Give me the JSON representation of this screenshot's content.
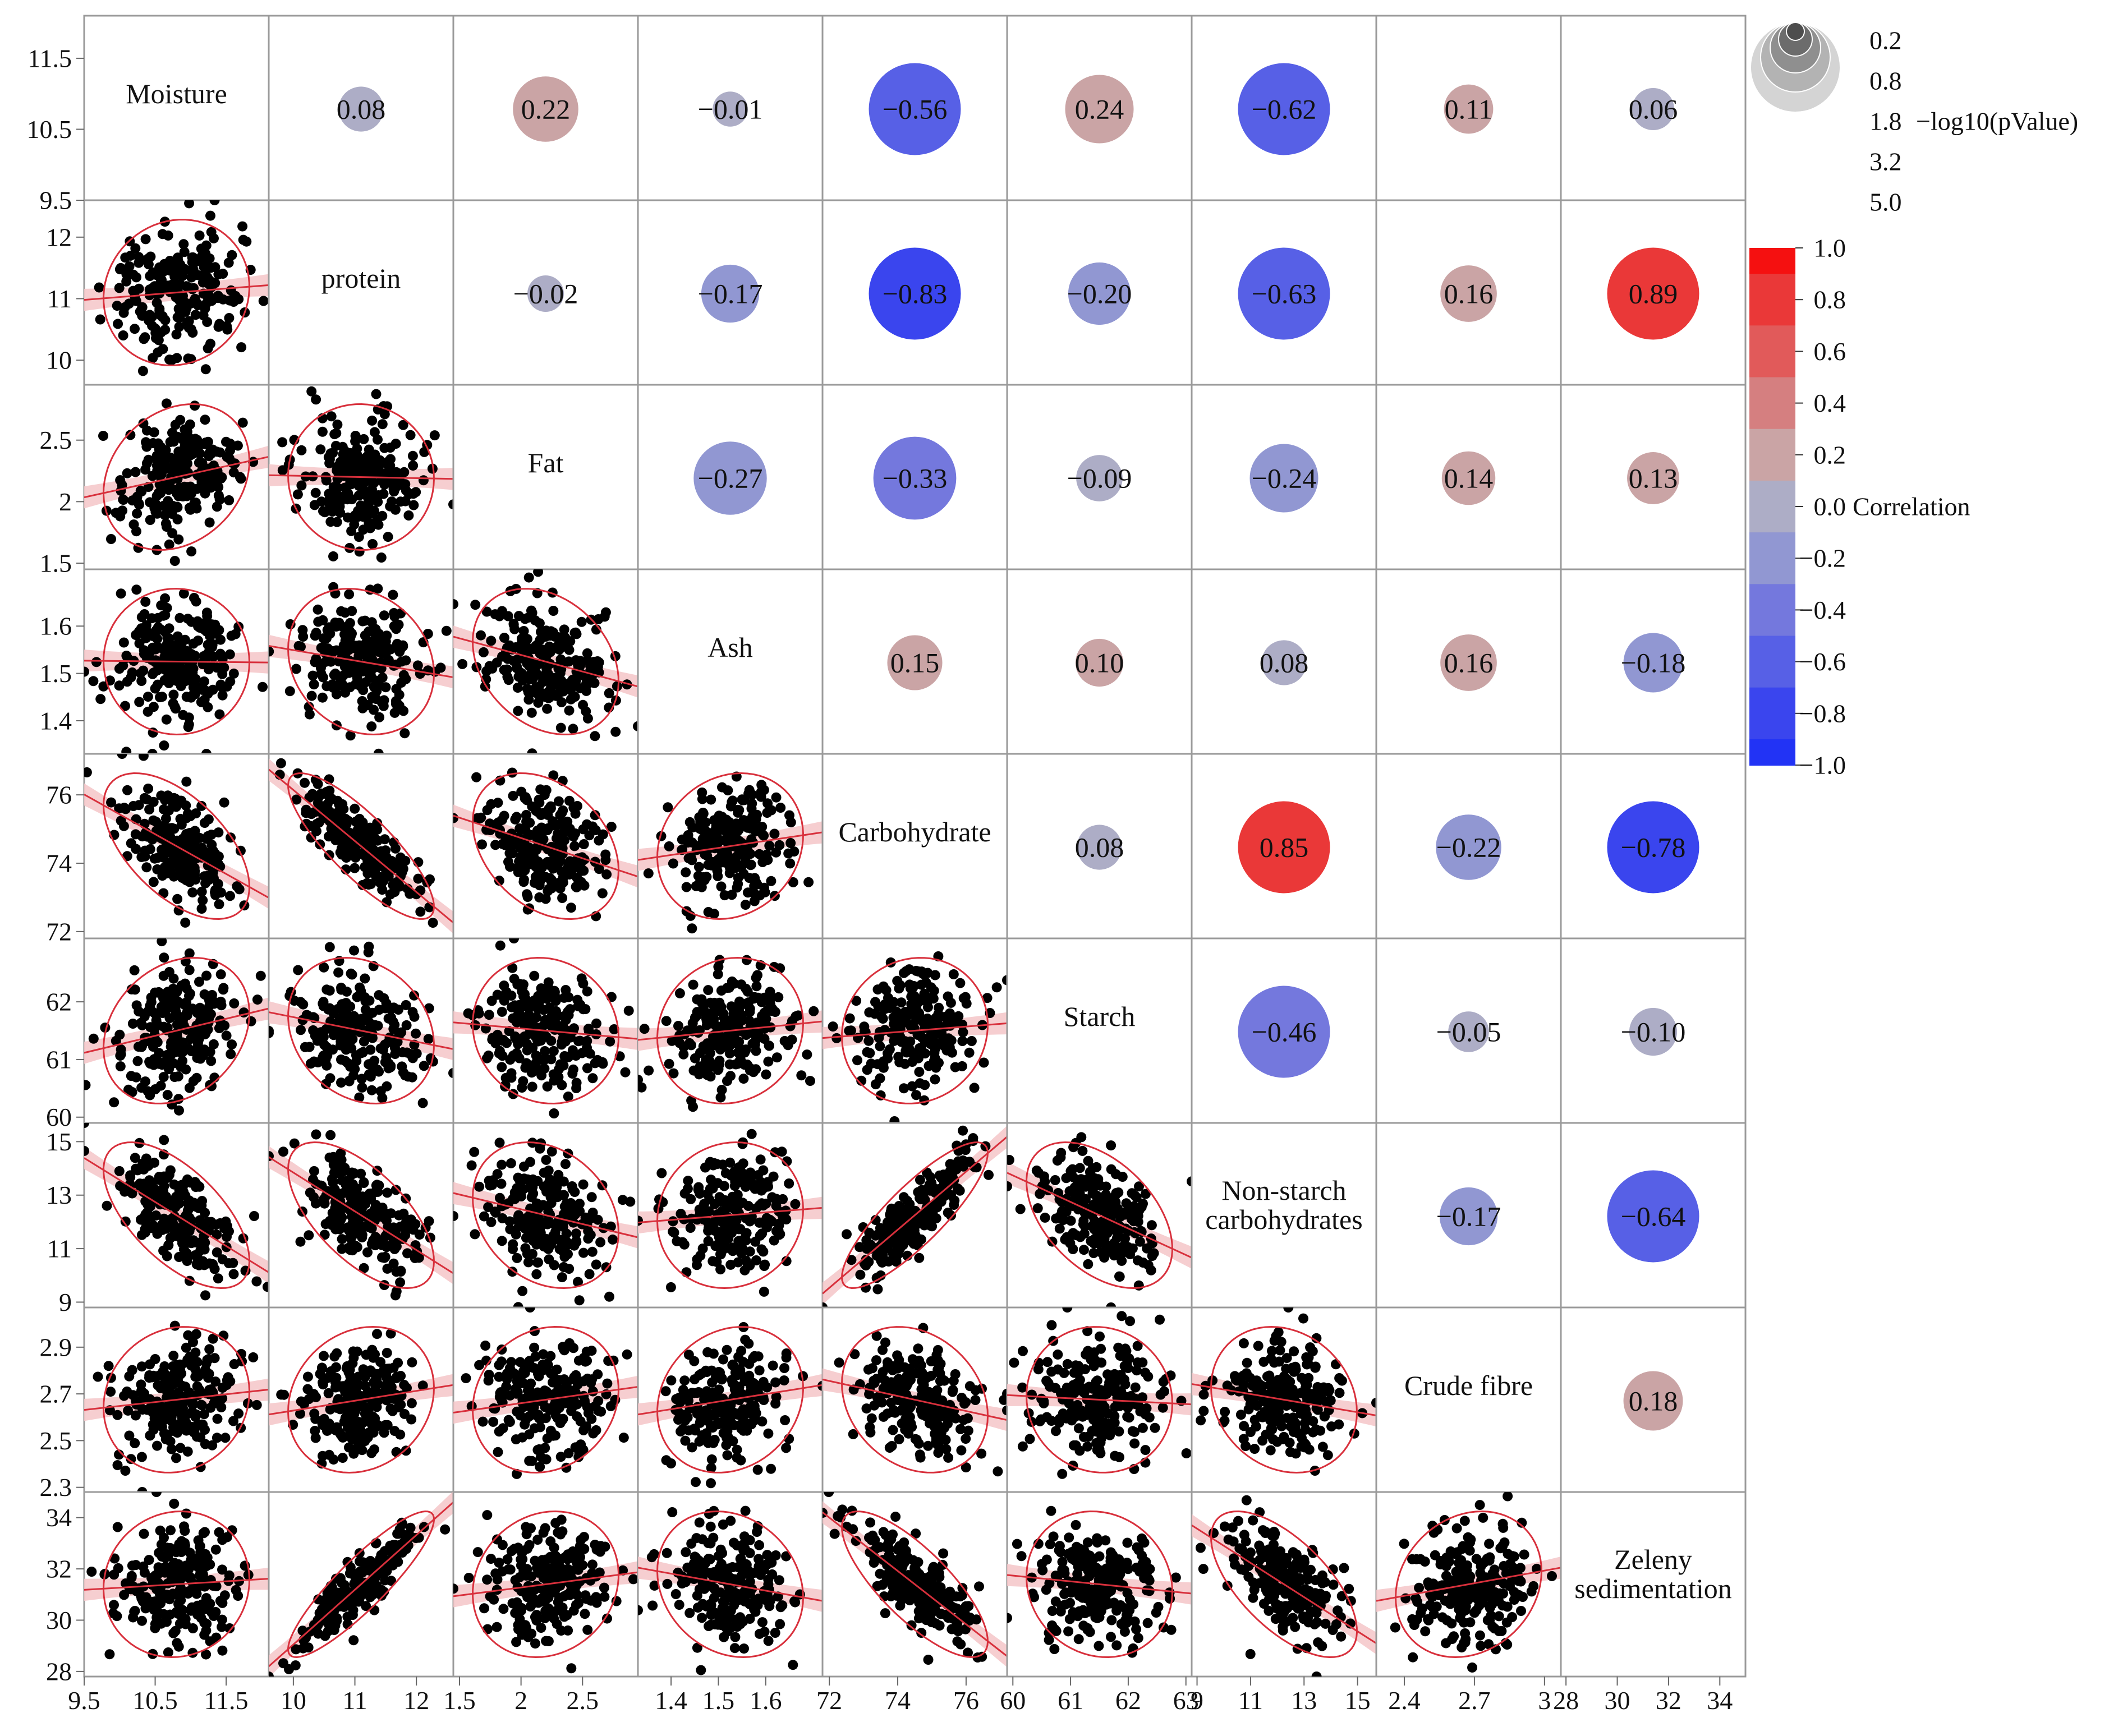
{
  "chart_data": {
    "type": "scatter",
    "variables": [
      "Moisture",
      "protein",
      "Fat",
      "Ash",
      "Carbohydrate",
      "Starch",
      "Non-starch carbohydrates",
      "Crude fibre",
      "Zeleny sedimentation"
    ],
    "diagonal_labels": [
      [
        "Moisture"
      ],
      [
        "protein"
      ],
      [
        "Fat"
      ],
      [
        "Ash"
      ],
      [
        "Carbohydrate"
      ],
      [
        "Starch"
      ],
      [
        "Non-starch",
        "carbohydrates"
      ],
      [
        "Crude fibre"
      ],
      [
        "Zeleny",
        "sedimentation"
      ]
    ],
    "axis_ranges": [
      [
        9.5,
        12.1
      ],
      [
        9.6,
        12.6
      ],
      [
        1.45,
        2.95
      ],
      [
        1.33,
        1.72
      ],
      [
        71.8,
        77.2
      ],
      [
        59.9,
        63.1
      ],
      [
        8.8,
        15.7
      ],
      [
        2.28,
        3.07
      ],
      [
        27.8,
        35
      ]
    ],
    "x_tick_labels": [
      [
        "9.5",
        "10.5",
        "11.5"
      ],
      [
        "10",
        "11",
        "12"
      ],
      [
        "1.5",
        "2",
        "2.5"
      ],
      [
        "1.4",
        "1.5",
        "1.6"
      ],
      [
        "72",
        "74",
        "76"
      ],
      [
        "60",
        "61",
        "62",
        "63"
      ],
      [
        "9",
        "11",
        "13",
        "15"
      ],
      [
        "2.4",
        "2.7",
        "3"
      ],
      [
        "28",
        "30",
        "32",
        "34"
      ]
    ],
    "x_tick_values": [
      [
        9.5,
        10.5,
        11.5
      ],
      [
        10,
        11,
        12
      ],
      [
        1.5,
        2,
        2.5
      ],
      [
        1.4,
        1.5,
        1.6
      ],
      [
        72,
        74,
        76
      ],
      [
        60,
        61,
        62,
        63
      ],
      [
        9,
        11,
        13,
        15
      ],
      [
        2.4,
        2.7,
        3
      ],
      [
        28,
        30,
        32,
        34
      ]
    ],
    "y_tick_labels": [
      [
        "9.5",
        "10.5",
        "11.5"
      ],
      [
        "10",
        "11",
        "12"
      ],
      [
        "1.5",
        "2",
        "2.5"
      ],
      [
        "1.4",
        "1.5",
        "1.6"
      ],
      [
        "72",
        "74",
        "76"
      ],
      [
        "60",
        "61",
        "62"
      ],
      [
        "9",
        "11",
        "13",
        "15"
      ],
      [
        "2.3",
        "2.5",
        "2.7",
        "2.9"
      ],
      [
        "28",
        "30",
        "32",
        "34"
      ]
    ],
    "y_tick_values": [
      [
        9.5,
        10.5,
        11.5
      ],
      [
        10,
        11,
        12
      ],
      [
        1.5,
        2,
        2.5
      ],
      [
        1.4,
        1.5,
        1.6
      ],
      [
        72,
        74,
        76
      ],
      [
        60,
        61,
        62
      ],
      [
        9,
        11,
        13,
        15
      ],
      [
        2.3,
        2.5,
        2.7,
        2.9
      ],
      [
        28,
        30,
        32,
        34
      ]
    ],
    "correlations": [
      {
        "row": 0,
        "col": 1,
        "r": 0.08,
        "label": "0.08"
      },
      {
        "row": 0,
        "col": 2,
        "r": 0.22,
        "label": "0.22"
      },
      {
        "row": 0,
        "col": 3,
        "r": -0.01,
        "label": "−0.01"
      },
      {
        "row": 0,
        "col": 4,
        "r": -0.56,
        "label": "−0.56"
      },
      {
        "row": 0,
        "col": 5,
        "r": 0.24,
        "label": "0.24"
      },
      {
        "row": 0,
        "col": 6,
        "r": -0.62,
        "label": "−0.62"
      },
      {
        "row": 0,
        "col": 7,
        "r": 0.11,
        "label": "0.11"
      },
      {
        "row": 0,
        "col": 8,
        "r": 0.06,
        "label": "0.06"
      },
      {
        "row": 1,
        "col": 2,
        "r": -0.02,
        "label": "−0.02"
      },
      {
        "row": 1,
        "col": 3,
        "r": -0.17,
        "label": "−0.17"
      },
      {
        "row": 1,
        "col": 4,
        "r": -0.83,
        "label": "−0.83"
      },
      {
        "row": 1,
        "col": 5,
        "r": -0.2,
        "label": "−0.20"
      },
      {
        "row": 1,
        "col": 6,
        "r": -0.63,
        "label": "−0.63"
      },
      {
        "row": 1,
        "col": 7,
        "r": 0.16,
        "label": "0.16"
      },
      {
        "row": 1,
        "col": 8,
        "r": 0.89,
        "label": "0.89"
      },
      {
        "row": 2,
        "col": 3,
        "r": -0.27,
        "label": "−0.27"
      },
      {
        "row": 2,
        "col": 4,
        "r": -0.33,
        "label": "−0.33"
      },
      {
        "row": 2,
        "col": 5,
        "r": -0.09,
        "label": "−0.09"
      },
      {
        "row": 2,
        "col": 6,
        "r": -0.24,
        "label": "−0.24"
      },
      {
        "row": 2,
        "col": 7,
        "r": 0.14,
        "label": "0.14"
      },
      {
        "row": 2,
        "col": 8,
        "r": 0.13,
        "label": "0.13"
      },
      {
        "row": 3,
        "col": 4,
        "r": 0.15,
        "label": "0.15"
      },
      {
        "row": 3,
        "col": 5,
        "r": 0.1,
        "label": "0.10"
      },
      {
        "row": 3,
        "col": 6,
        "r": 0.08,
        "label": "0.08"
      },
      {
        "row": 3,
        "col": 7,
        "r": 0.16,
        "label": "0.16"
      },
      {
        "row": 3,
        "col": 8,
        "r": -0.18,
        "label": "−0.18"
      },
      {
        "row": 4,
        "col": 5,
        "r": 0.08,
        "label": "0.08"
      },
      {
        "row": 4,
        "col": 6,
        "r": 0.85,
        "label": "0.85"
      },
      {
        "row": 4,
        "col": 7,
        "r": -0.22,
        "label": "−0.22"
      },
      {
        "row": 4,
        "col": 8,
        "r": -0.78,
        "label": "−0.78"
      },
      {
        "row": 5,
        "col": 6,
        "r": -0.46,
        "label": "−0.46"
      },
      {
        "row": 5,
        "col": 7,
        "r": -0.05,
        "label": "−0.05"
      },
      {
        "row": 5,
        "col": 8,
        "r": -0.1,
        "label": "−0.10"
      },
      {
        "row": 6,
        "col": 7,
        "r": -0.17,
        "label": "−0.17"
      },
      {
        "row": 6,
        "col": 8,
        "r": -0.64,
        "label": "−0.64"
      },
      {
        "row": 7,
        "col": 8,
        "r": 0.18,
        "label": "0.18"
      }
    ],
    "circle_size_legend": {
      "title": "−log10(pValue)",
      "labels": [
        "0.2",
        "0.8",
        "1.8",
        "3.2",
        "5.0"
      ],
      "values": [
        0.2,
        0.8,
        1.8,
        3.2,
        5.0
      ]
    },
    "color_legend": {
      "title": "Correlation",
      "labels": [
        "1.0",
        "0.8",
        "0.6",
        "0.4",
        "0.2",
        "0.0",
        "−0.2",
        "−0.4",
        "−0.6",
        "−0.8",
        "−1.0"
      ],
      "values": [
        1.0,
        0.8,
        0.6,
        0.4,
        0.2,
        0.0,
        -0.2,
        -0.4,
        -0.6,
        -0.8,
        -1.0
      ],
      "colors": [
        "#f51010",
        "#ea3838",
        "#e15a5a",
        "#d57f80",
        "#caa4a5",
        "#adadc6",
        "#9197d2",
        "#7478dd",
        "#5760e6",
        "#3a45ee",
        "#2233f5"
      ]
    },
    "point_color": "#000000",
    "ellipse_color": "#d8303c",
    "fit_line_color": "#d8303c",
    "fit_band_color": "#f4c6c8",
    "grid": false,
    "legend_position": "right",
    "sample_size_per_panel": 220
  }
}
